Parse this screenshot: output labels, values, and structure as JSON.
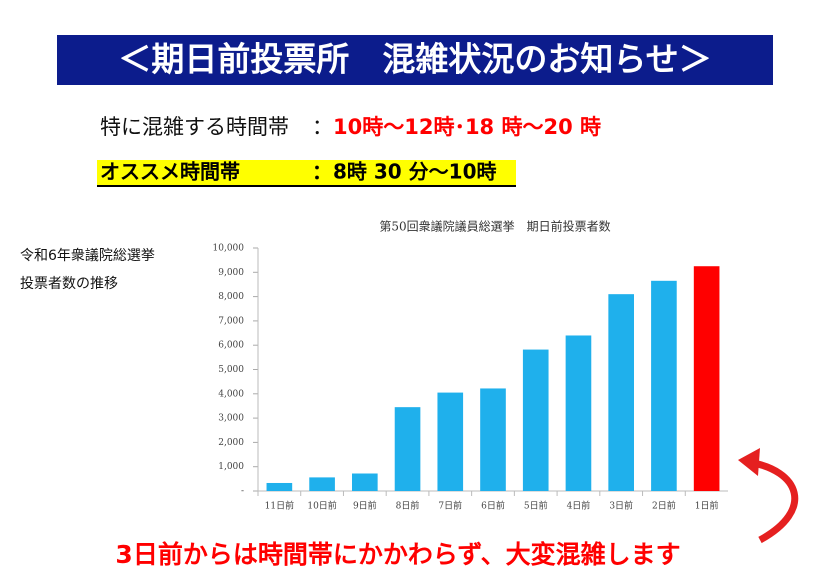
{
  "banner": "＜期日前投票所　混雑状況のお知らせ＞",
  "busy": {
    "label": "特に混雑する時間帯",
    "separator": "：",
    "times": "10時～12時･18 時～20 時"
  },
  "recommend": {
    "label": "オススメ時間帯",
    "separator": "：",
    "times": "8時 30 分～10時"
  },
  "side_note": [
    "令和6年衆議院総選挙",
    "投票者数の推移"
  ],
  "footer": "3日前からは時間帯にかかわらず、大変混雑します",
  "chart_data": {
    "type": "bar",
    "title": "第50回衆議院議員総選挙　期日前投票者数",
    "categories": [
      "11日前",
      "10日前",
      "9日前",
      "8日前",
      "7日前",
      "6日前",
      "5日前",
      "4日前",
      "3日前",
      "2日前",
      "1日前"
    ],
    "values": [
      330,
      560,
      720,
      3450,
      4050,
      4220,
      5820,
      6400,
      8100,
      8650,
      9250
    ],
    "colors": [
      "#1fb0ec",
      "#1fb0ec",
      "#1fb0ec",
      "#1fb0ec",
      "#1fb0ec",
      "#1fb0ec",
      "#1fb0ec",
      "#1fb0ec",
      "#1fb0ec",
      "#1fb0ec",
      "#ff0000"
    ],
    "ylim": [
      0,
      10000
    ],
    "yticks": [
      {
        "value": 0,
        "label": "-"
      },
      {
        "value": 1000,
        "label": "1,000"
      },
      {
        "value": 2000,
        "label": "2,000"
      },
      {
        "value": 3000,
        "label": "3,000"
      },
      {
        "value": 4000,
        "label": "4,000"
      },
      {
        "value": 5000,
        "label": "5,000"
      },
      {
        "value": 6000,
        "label": "6,000"
      },
      {
        "value": 7000,
        "label": "7,000"
      },
      {
        "value": 8000,
        "label": "8,000"
      },
      {
        "value": 9000,
        "label": "9,000"
      },
      {
        "value": 10000,
        "label": "10,000"
      }
    ],
    "grid": false
  }
}
